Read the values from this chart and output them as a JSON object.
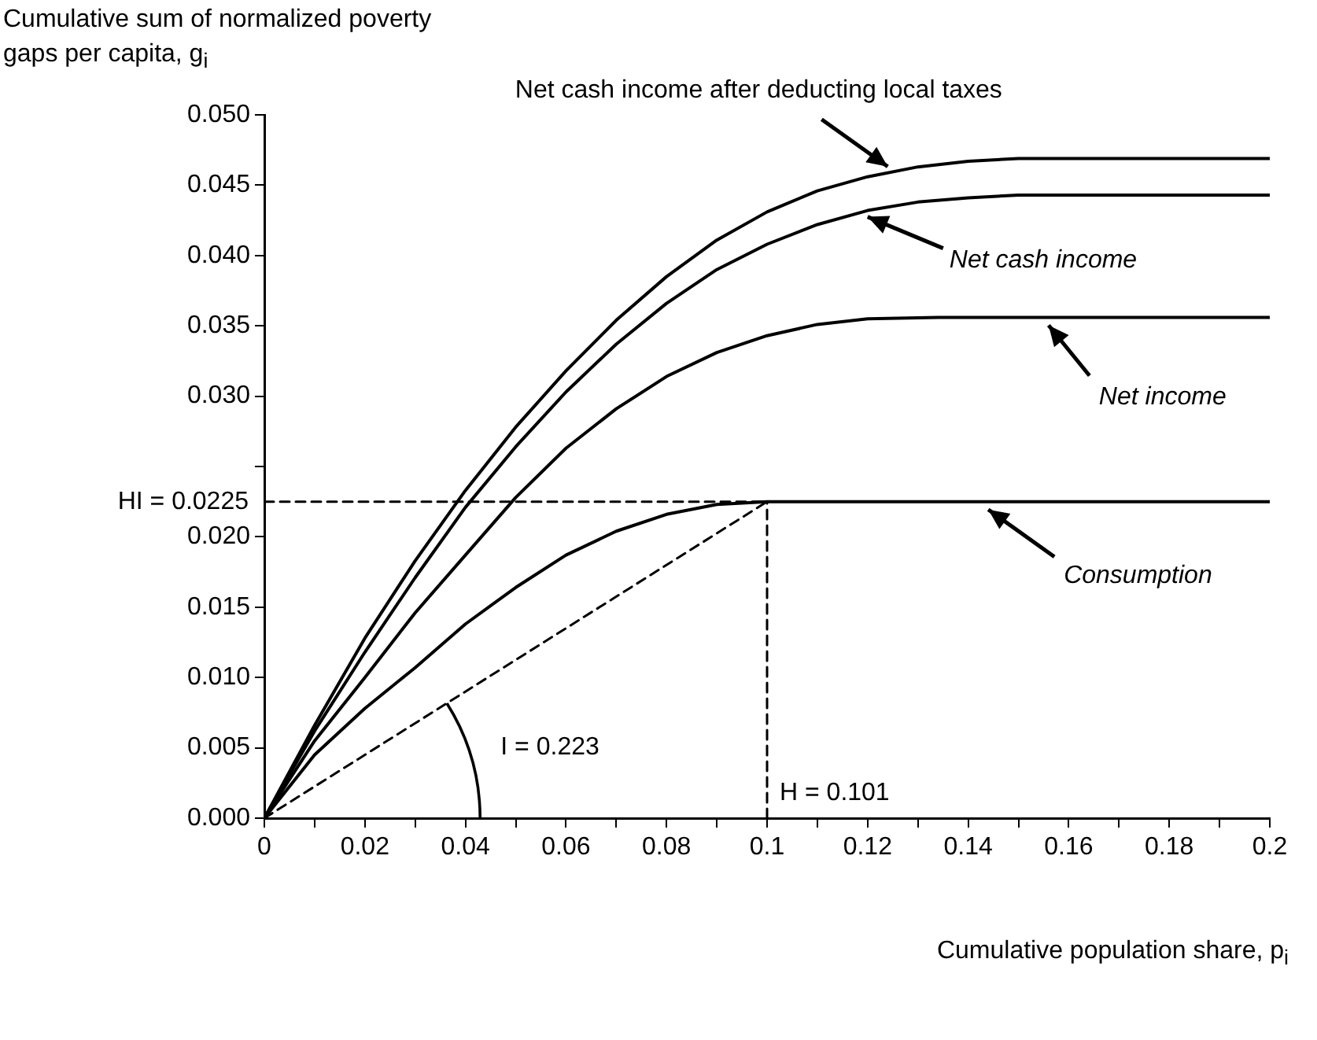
{
  "chart_data": {
    "type": "line",
    "ylabel": "Cumulative sum of normalized poverty gaps per capita, g$_{i}$",
    "xlabel": "Cumulative population share, p$_{i}$",
    "xlim": [
      0,
      0.2
    ],
    "ylim": [
      0,
      0.05
    ],
    "xticks": [
      0,
      {
        "value": 0.01,
        "label": null
      },
      0.02,
      {
        "value": 0.03,
        "label": null
      },
      0.04,
      {
        "value": 0.05,
        "label": null
      },
      0.06,
      {
        "value": 0.07,
        "label": null
      },
      0.08,
      {
        "value": 0.09,
        "label": null
      },
      0.1,
      {
        "value": 0.11,
        "label": null
      },
      0.12,
      {
        "value": 0.13,
        "label": null
      },
      0.14,
      {
        "value": 0.15,
        "label": null
      },
      0.16,
      {
        "value": 0.17,
        "label": null
      },
      0.18,
      {
        "value": 0.19,
        "label": null
      },
      0.2
    ],
    "yticks": [
      {
        "value": 0,
        "label": "0.000"
      },
      0.005,
      {
        "value": 0.01,
        "label": "0.010"
      },
      0.015,
      {
        "value": 0.02,
        "label": "0.020"
      },
      {
        "value": 0.025,
        "label": null
      },
      {
        "value": 0.03,
        "label": "0.030"
      },
      0.035,
      {
        "value": 0.04,
        "label": "0.040"
      },
      0.045,
      {
        "value": 0.05,
        "label": "0.050"
      }
    ],
    "series": [
      {
        "name": "Net cash income after deducting local taxes",
        "color": "#000000",
        "x": [
          0,
          0.01,
          0.02,
          0.03,
          0.04,
          0.05,
          0.06,
          0.07,
          0.08,
          0.09,
          0.1,
          0.11,
          0.12,
          0.13,
          0.14,
          0.15,
          0.166,
          0.2
        ],
        "values": [
          0,
          0.0066,
          0.0128,
          0.0183,
          0.0233,
          0.0278,
          0.0318,
          0.0354,
          0.0385,
          0.0411,
          0.0431,
          0.0446,
          0.0456,
          0.0463,
          0.0467,
          0.0469,
          0.0469,
          0.0469
        ]
      },
      {
        "name": "Net cash income",
        "color": "#000000",
        "x": [
          0,
          0.01,
          0.02,
          0.03,
          0.04,
          0.05,
          0.06,
          0.07,
          0.08,
          0.09,
          0.1,
          0.11,
          0.12,
          0.13,
          0.14,
          0.15,
          0.162,
          0.2
        ],
        "values": [
          0,
          0.0062,
          0.0118,
          0.0171,
          0.0221,
          0.0264,
          0.0303,
          0.0337,
          0.0366,
          0.039,
          0.0408,
          0.0422,
          0.0432,
          0.0438,
          0.0441,
          0.0443,
          0.0443,
          0.0443
        ]
      },
      {
        "name": "Net income",
        "color": "#000000",
        "x": [
          0,
          0.01,
          0.02,
          0.03,
          0.04,
          0.05,
          0.06,
          0.07,
          0.08,
          0.09,
          0.1,
          0.11,
          0.12,
          0.134,
          0.2
        ],
        "values": [
          0,
          0.0055,
          0.01,
          0.0146,
          0.0187,
          0.0228,
          0.0263,
          0.0291,
          0.0314,
          0.0331,
          0.0343,
          0.0351,
          0.0355,
          0.0356,
          0.0356
        ]
      },
      {
        "name": "Consumption",
        "color": "#000000",
        "x": [
          0,
          0.01,
          0.02,
          0.03,
          0.04,
          0.05,
          0.06,
          0.07,
          0.08,
          0.09,
          0.1,
          0.2
        ],
        "values": [
          0,
          0.0045,
          0.0078,
          0.0107,
          0.0138,
          0.0164,
          0.0187,
          0.0204,
          0.0216,
          0.0223,
          0.0225,
          0.0225
        ]
      },
      {
        "color": "#000000",
        "line_style": "dashed",
        "x": [
          0,
          0.1
        ],
        "values": [
          0.0225,
          0.0225
        ]
      },
      {
        "color": "#000000",
        "line_style": "dashed",
        "x": [
          0.1,
          0.1
        ],
        "values": [
          0,
          0.0225
        ]
      },
      {
        "color": "#000000",
        "line_style": "dashed",
        "x": [
          0,
          0.1
        ],
        "values": [
          0,
          0.0225
        ]
      }
    ],
    "annotations": [
      {
        "text": "HI = 0.0225",
        "x": 0,
        "y": 0.0225
      },
      {
        "text": "H = 0.101",
        "x": 0.1,
        "y": 0
      },
      "I = 0.223"
    ]
  }
}
